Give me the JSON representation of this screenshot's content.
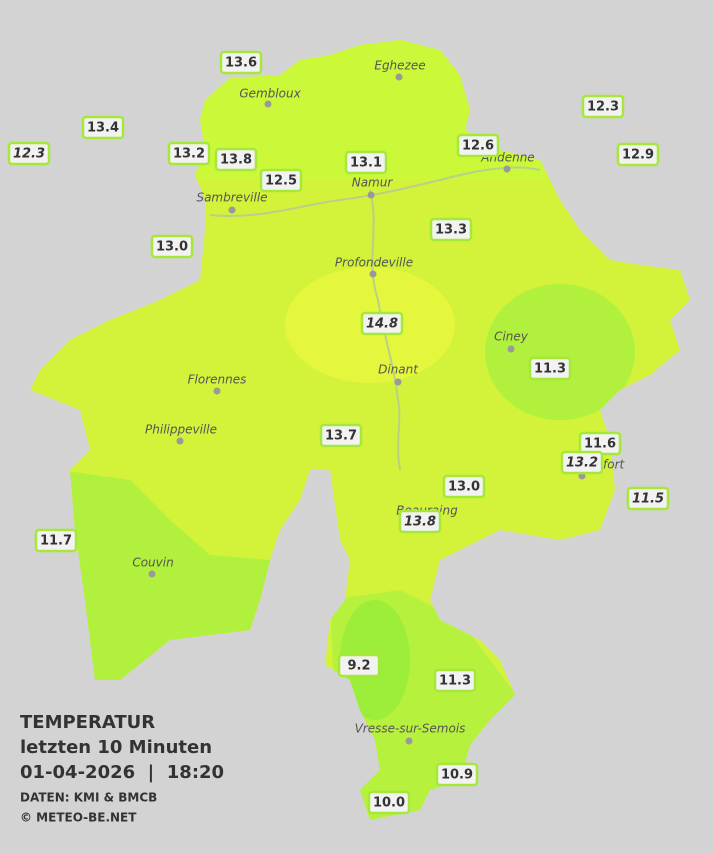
{
  "title": {
    "line1": "TEMPERATUR",
    "line2": "letzten 10 Minuten",
    "line3": "01-04-2026  |  18:20",
    "source": "DATEN: KMI & BMCB",
    "copyright": "© METEO-BE.NET"
  },
  "cities": [
    "Eghezee",
    "Gembloux",
    "Andenne",
    "Namur",
    "Sambreville",
    "Profondeville",
    "Ciney",
    "Florennes",
    "Dinant",
    "Philippeville",
    "Rochefort",
    "Beauraing",
    "Couvin",
    "Vresse-sur-Semois"
  ],
  "stations": [
    "13.6",
    "13.4",
    "12.3",
    "13.2",
    "13.8",
    "12.5",
    "13.1",
    "12.6",
    "12.3",
    "12.9",
    "13.0",
    "13.3",
    "14.8",
    "11.3",
    "13.7",
    "11.6",
    "13.2",
    "11.5",
    "13.0",
    "13.8",
    "11.7",
    "9.2",
    "11.3",
    "10.9",
    "10.0"
  ]
}
